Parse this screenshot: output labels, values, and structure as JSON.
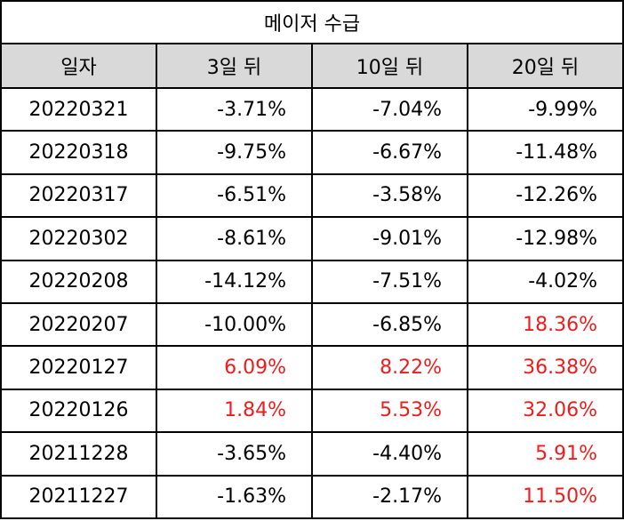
{
  "title": "메이저 수급",
  "headers": [
    "일자",
    "3일 뒤",
    "10일 뒤",
    "20일 뒤"
  ],
  "colors": {
    "positive": "#ee1c1c",
    "negative": "#000000",
    "header_bg": "#d9d9d9"
  },
  "rows": [
    {
      "date": "20220321",
      "d3": "-3.71%",
      "d10": "-7.04%",
      "d20": "-9.99%",
      "sign": [
        "neg",
        "neg",
        "neg"
      ]
    },
    {
      "date": "20220318",
      "d3": "-9.75%",
      "d10": "-6.67%",
      "d20": "-11.48%",
      "sign": [
        "neg",
        "neg",
        "neg"
      ]
    },
    {
      "date": "20220317",
      "d3": "-6.51%",
      "d10": "-3.58%",
      "d20": "-12.26%",
      "sign": [
        "neg",
        "neg",
        "neg"
      ]
    },
    {
      "date": "20220302",
      "d3": "-8.61%",
      "d10": "-9.01%",
      "d20": "-12.98%",
      "sign": [
        "neg",
        "neg",
        "neg"
      ]
    },
    {
      "date": "20220208",
      "d3": "-14.12%",
      "d10": "-7.51%",
      "d20": "-4.02%",
      "sign": [
        "neg",
        "neg",
        "neg"
      ]
    },
    {
      "date": "20220207",
      "d3": "-10.00%",
      "d10": "-6.85%",
      "d20": "18.36%",
      "sign": [
        "neg",
        "neg",
        "pos"
      ]
    },
    {
      "date": "20220127",
      "d3": "6.09%",
      "d10": "8.22%",
      "d20": "36.38%",
      "sign": [
        "pos",
        "pos",
        "pos"
      ]
    },
    {
      "date": "20220126",
      "d3": "1.84%",
      "d10": "5.53%",
      "d20": "32.06%",
      "sign": [
        "pos",
        "pos",
        "pos"
      ]
    },
    {
      "date": "20211228",
      "d3": "-3.65%",
      "d10": "-4.40%",
      "d20": "5.91%",
      "sign": [
        "neg",
        "neg",
        "pos"
      ]
    },
    {
      "date": "20211227",
      "d3": "-1.63%",
      "d10": "-2.17%",
      "d20": "11.50%",
      "sign": [
        "neg",
        "neg",
        "pos"
      ]
    }
  ]
}
